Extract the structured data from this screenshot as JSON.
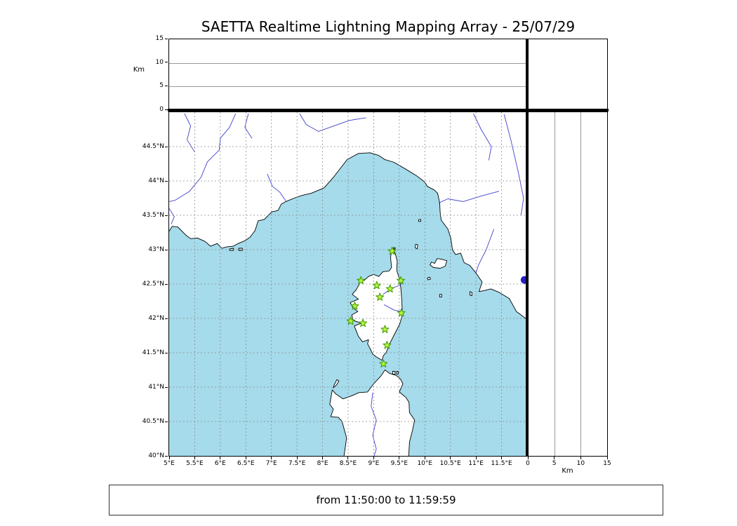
{
  "title": "SAETTA Realtime Lightning Mapping Array - 25/07/29",
  "footer": {
    "time_range": "from 11:50:00 to 11:59:59"
  },
  "altitude_axis": {
    "label": "Km",
    "max": 15,
    "ticks": [
      {
        "v": 0,
        "label": "0"
      },
      {
        "v": 5,
        "label": "5"
      },
      {
        "v": 10,
        "label": "10"
      },
      {
        "v": 15,
        "label": "15"
      }
    ]
  },
  "map_axes": {
    "lon_ticks": [
      {
        "v": 5,
        "label": "5°E"
      },
      {
        "v": 5.5,
        "label": "5.5°E"
      },
      {
        "v": 6,
        "label": "6°E"
      },
      {
        "v": 6.5,
        "label": "6.5°E"
      },
      {
        "v": 7,
        "label": "7°E"
      },
      {
        "v": 7.5,
        "label": "7.5°E"
      },
      {
        "v": 8,
        "label": "8°E"
      },
      {
        "v": 8.5,
        "label": "8.5°E"
      },
      {
        "v": 9,
        "label": "9°E"
      },
      {
        "v": 9.5,
        "label": "9.5°E"
      },
      {
        "v": 10,
        "label": "10°E"
      },
      {
        "v": 10.5,
        "label": "10.5°E"
      },
      {
        "v": 11,
        "label": "11°E"
      },
      {
        "v": 11.5,
        "label": "11.5°E"
      }
    ],
    "lat_ticks": [
      {
        "v": 40,
        "label": "40°N"
      },
      {
        "v": 40.5,
        "label": "40.5°N"
      },
      {
        "v": 41,
        "label": "41°N"
      },
      {
        "v": 41.5,
        "label": "41.5°N"
      },
      {
        "v": 42,
        "label": "42°N"
      },
      {
        "v": 42.5,
        "label": "42.5°N"
      },
      {
        "v": 43,
        "label": "43°N"
      },
      {
        "v": 43.5,
        "label": "43.5°N"
      },
      {
        "v": 44,
        "label": "44°N"
      },
      {
        "v": 44.5,
        "label": "44.5°N"
      }
    ]
  },
  "colors": {
    "sea": "#a5dbeb",
    "land": "#ffffff",
    "coast": "#000000",
    "river": "#4040cc",
    "grid": "#8c8c8c",
    "station_fill": "#bdf23d",
    "station_edge": "#3a9d00",
    "lake": "#2222cc"
  },
  "chart_data": {
    "type": "scatter",
    "title": "SAETTA Realtime Lightning Mapping Array - 25/07/29",
    "main_panel": {
      "x_axis": {
        "unit": "°E",
        "min": 5,
        "max": 12,
        "tick_step": 0.5
      },
      "y_axis": {
        "unit": "°N",
        "min": 40,
        "max": 45,
        "tick_step": 0.5
      },
      "grid": true,
      "basemap": "Corsica, southern France coast, NW Italy coast, northern Sardinia, Tuscan islands"
    },
    "altitude_panels": {
      "unit": "Km",
      "min": 0,
      "max": 15,
      "ticks": [
        0,
        5,
        10,
        15
      ],
      "points": []
    },
    "series": [
      {
        "name": "SAETTA stations",
        "marker": "star",
        "color": "#3a9d00",
        "points_lon_lat": [
          [
            9.36,
            42.98
          ],
          [
            8.75,
            42.55
          ],
          [
            9.06,
            42.48
          ],
          [
            9.53,
            42.55
          ],
          [
            9.32,
            42.43
          ],
          [
            9.12,
            42.31
          ],
          [
            8.63,
            42.18
          ],
          [
            9.54,
            42.08
          ],
          [
            8.55,
            41.96
          ],
          [
            8.79,
            41.93
          ],
          [
            9.22,
            41.84
          ],
          [
            9.26,
            41.61
          ],
          [
            9.19,
            41.34
          ]
        ]
      },
      {
        "name": "lightning sources",
        "marker": "dot",
        "points_lon_lat": []
      }
    ],
    "other_markers": [
      {
        "name": "lake-bolsena",
        "lon": 11.95,
        "lat": 42.56
      }
    ]
  }
}
